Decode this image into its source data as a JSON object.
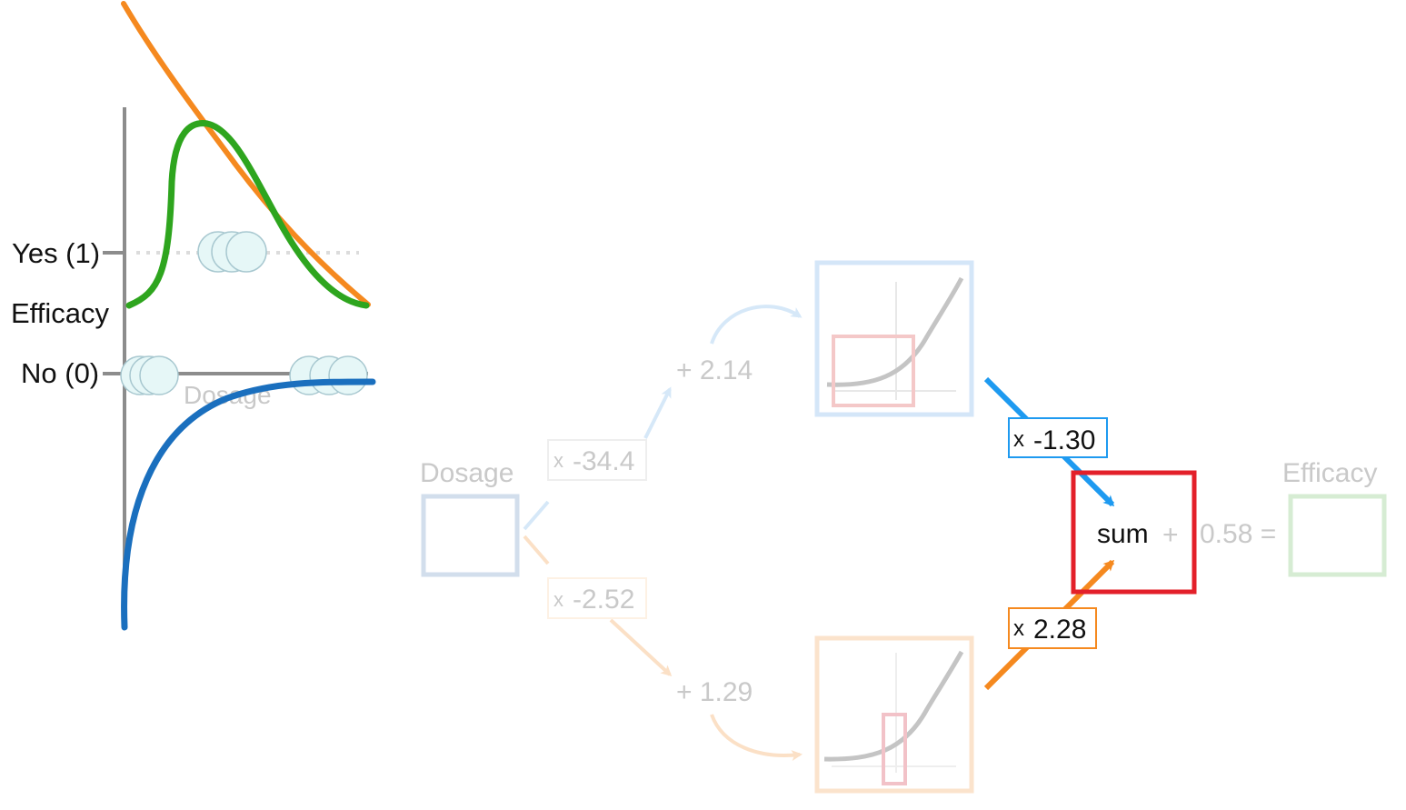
{
  "plot": {
    "y_labels": {
      "yes": "Yes (1)",
      "efficacy": "Efficacy",
      "no": "No (0)"
    },
    "x_label": "Dosage"
  },
  "network": {
    "input_label": "Dosage",
    "output_label": "Efficacy",
    "top_weight": {
      "prefix": "x",
      "value": "-34.4"
    },
    "bottom_weight": {
      "prefix": "x",
      "value": "-2.52"
    },
    "top_bias": "+ 2.14",
    "bottom_bias": "+ 1.29",
    "top_out_weight": {
      "prefix": "x",
      "value": "-1.30"
    },
    "bottom_out_weight": {
      "prefix": "x",
      "value": "2.28"
    },
    "sum_label": "sum",
    "final_bias_plus": "+",
    "final_bias": "0.58 ="
  },
  "colors": {
    "blue": "#1e9af0",
    "dark_blue": "#1a6fbe",
    "orange": "#f5891f",
    "green": "#2ea51e",
    "red": "#e3202a",
    "faded_blue": "#cfe3f7",
    "faded_orange": "#fbe0c6",
    "faded_green": "#cfe8cc",
    "faded_red": "#f5c5c5",
    "grey_text": "#c9c9c9"
  }
}
